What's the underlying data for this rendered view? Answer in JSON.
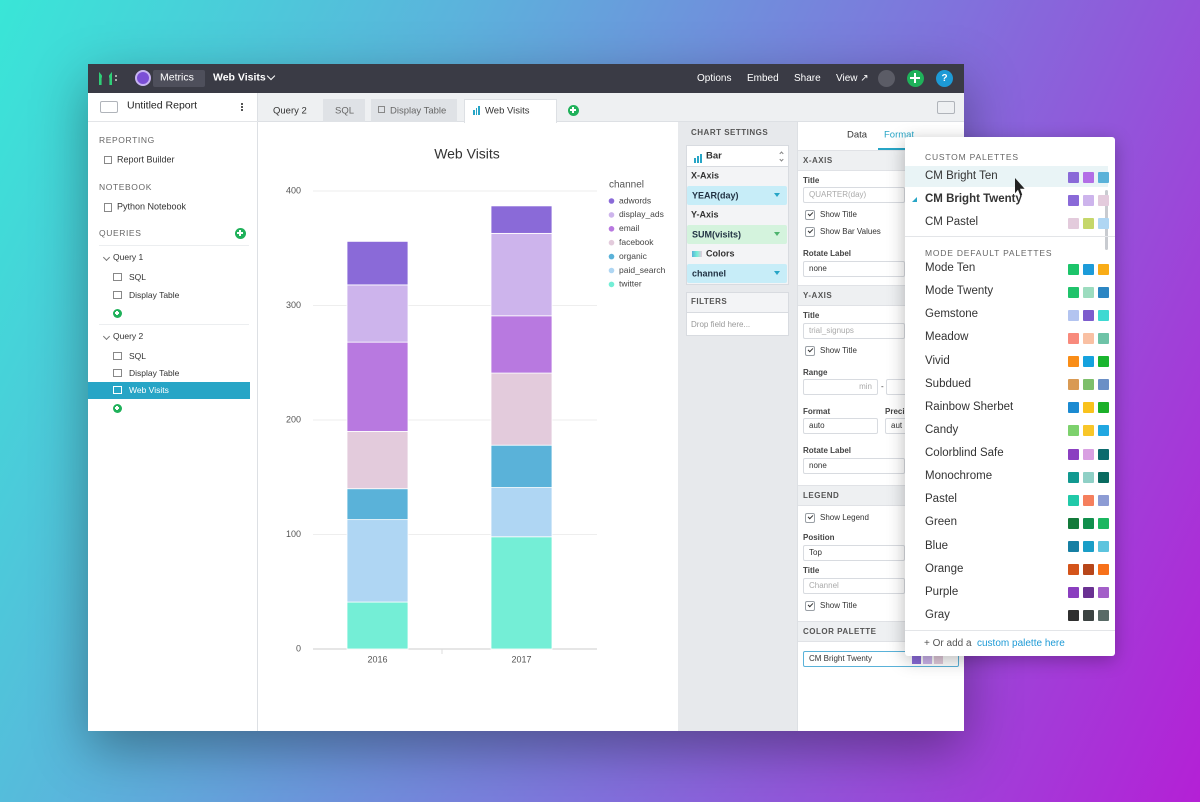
{
  "app": {
    "topbar": {
      "brand": "Metrics",
      "report": "Web Visits",
      "menu": [
        "Options",
        "Embed",
        "Share",
        "View ↗"
      ],
      "help": "?"
    },
    "sidebar": {
      "title": "Untitled Report",
      "reporting": "REPORTING",
      "report_builder": "Report Builder",
      "notebook": "NOTEBOOK",
      "python_notebook": "Python Notebook",
      "queries": "QUERIES",
      "query_1": {
        "name": "Query 1",
        "items": [
          "SQL",
          "Display Table"
        ]
      },
      "query_2": {
        "name": "Query 2",
        "items": [
          "SQL",
          "Display Table",
          "Web Visits"
        ]
      }
    },
    "tabs": [
      "Query 2",
      "SQL",
      "Display Table",
      "Web Visits"
    ],
    "chart_settings": {
      "header": "CHART SETTINGS",
      "chart_type": "Bar",
      "x_axis": "X-Axis",
      "x_field": "YEAR(day)",
      "y_axis": "Y-Axis",
      "y_field": "SUM(visits)",
      "colors": "Colors",
      "colors_field": "channel",
      "filters": "FILTERS",
      "drop_hint": "Drop field here..."
    },
    "format": {
      "tabs": [
        "Data",
        "Format"
      ],
      "x_axis": {
        "header": "X-AXIS",
        "title_label": "Title",
        "title_placeholder": "QUARTER(day)",
        "show_title": "Show Title",
        "show_bar_values": "Show Bar Values",
        "rotate_label": "Rotate Label",
        "rotate_value": "none"
      },
      "y_axis": {
        "header": "Y-AXIS",
        "title_label": "Title",
        "title_placeholder": "trial_signups",
        "show_title": "Show Title",
        "range": "Range",
        "range_min": "min",
        "range_sep": "-",
        "format_label": "Format",
        "format_value": "auto",
        "precision_label": "Preci",
        "precision_value": "aut",
        "rotate_label": "Rotate Label",
        "rotate_value": "none"
      },
      "legend": {
        "header": "LEGEND",
        "show_legend": "Show Legend",
        "position_label": "Position",
        "position_value": "Top",
        "title_label": "Title",
        "title_placeholder": "Channel",
        "show_title": "Show Title"
      },
      "color_palette": {
        "header": "COLOR PALETTE",
        "value": "CM Bright Twenty"
      }
    },
    "palette_menu": {
      "custom_title": "CUSTOM PALETTES",
      "custom": [
        {
          "name": "CM Bright Ten",
          "colors": [
            "#8a6ad8",
            "#b26ee6",
            "#5ab2d9"
          ]
        },
        {
          "name": "CM Bright Twenty",
          "colors": [
            "#8a6ad8",
            "#cdb4ec",
            "#e3cbdc"
          ]
        },
        {
          "name": "CM Pastel",
          "colors": [
            "#e3cbdc",
            "#c5d76a",
            "#afd6f3"
          ]
        }
      ],
      "default_title": "MODE DEFAULT PALETTES",
      "default": [
        {
          "name": "Mode Ten",
          "colors": [
            "#1cc46a",
            "#1d9bd9",
            "#f9ac17"
          ]
        },
        {
          "name": "Mode Twenty",
          "colors": [
            "#20c36b",
            "#9cdcbf",
            "#2c86c3"
          ]
        },
        {
          "name": "Gemstone",
          "colors": [
            "#b3c4f0",
            "#7d5ccd",
            "#3ed9d2"
          ]
        },
        {
          "name": "Meadow",
          "colors": [
            "#f88a7c",
            "#f9c0a3",
            "#6ec3a7"
          ]
        },
        {
          "name": "Vivid",
          "colors": [
            "#f98d17",
            "#15a2de",
            "#1ab52f"
          ]
        },
        {
          "name": "Subdued",
          "colors": [
            "#d99a54",
            "#7dbf6b",
            "#6a8fc6"
          ]
        },
        {
          "name": "Rainbow Sherbet",
          "colors": [
            "#1b8ad1",
            "#f9c21c",
            "#1cb02a"
          ]
        },
        {
          "name": "Candy",
          "colors": [
            "#7dd16d",
            "#f8c629",
            "#21a7e1"
          ]
        },
        {
          "name": "Colorblind Safe",
          "colors": [
            "#8b3fc1",
            "#d9a0e2",
            "#0c6a6e"
          ]
        },
        {
          "name": "Monochrome",
          "colors": [
            "#119990",
            "#8fd0c6",
            "#0a6b60"
          ]
        },
        {
          "name": "Pastel",
          "colors": [
            "#21c9a8",
            "#f57f5d",
            "#8d9cd4"
          ]
        },
        {
          "name": "Green",
          "colors": [
            "#137a3a",
            "#118f4d",
            "#1bb760"
          ]
        },
        {
          "name": "Blue",
          "colors": [
            "#167fa3",
            "#1a9ec7",
            "#5dc4de"
          ]
        },
        {
          "name": "Orange",
          "colors": [
            "#d4541a",
            "#b7461a",
            "#f7711a"
          ]
        },
        {
          "name": "Purple",
          "colors": [
            "#8a3ebf",
            "#6a3192",
            "#a35fc8"
          ]
        },
        {
          "name": "Gray",
          "colors": [
            "#2f2f2f",
            "#3c4342",
            "#596a66"
          ]
        }
      ],
      "footer": "+ Or add a",
      "link": "custom palette here"
    }
  },
  "chart_data": {
    "type": "bar",
    "stacked": true,
    "title": "Web Visits",
    "legend_title": "channel",
    "categories": [
      "2016",
      "2017"
    ],
    "series": [
      {
        "name": "adwords",
        "color": "#8a6ad8",
        "values": [
          38,
          24
        ]
      },
      {
        "name": "display_ads",
        "color": "#cdb4ec",
        "values": [
          50,
          72
        ]
      },
      {
        "name": "email",
        "color": "#b879e0",
        "values": [
          78,
          50
        ]
      },
      {
        "name": "facebook",
        "color": "#e3cbdc",
        "values": [
          50,
          63
        ]
      },
      {
        "name": "organic",
        "color": "#5ab2d9",
        "values": [
          27,
          37
        ]
      },
      {
        "name": "paid_search",
        "color": "#afd6f3",
        "values": [
          72,
          43
        ]
      },
      {
        "name": "twitter",
        "color": "#74eed6",
        "values": [
          41,
          98
        ]
      }
    ],
    "ylim": [
      0,
      400
    ],
    "yticks": [
      0,
      100,
      200,
      300,
      400
    ],
    "grid": true
  }
}
